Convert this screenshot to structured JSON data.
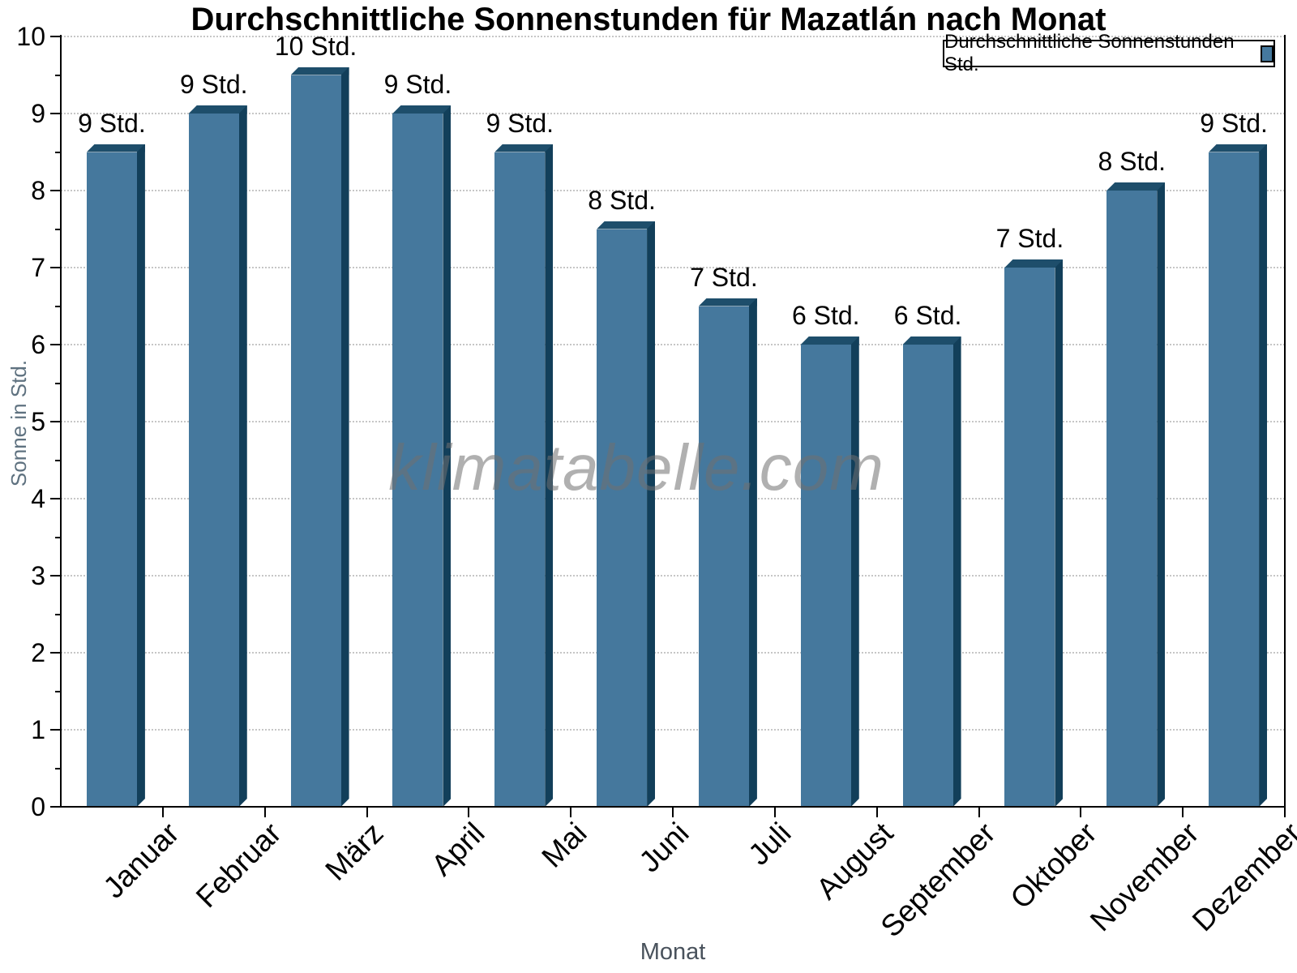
{
  "chart_data": {
    "type": "bar",
    "title": "Durchschnittliche Sonnenstunden für Mazatlán nach Monat",
    "xlabel": "Monat",
    "ylabel": "Sonne in Std.",
    "watermark": "klimatabelle.com",
    "categories": [
      "Januar",
      "Februar",
      "März",
      "April",
      "Mai",
      "Juni",
      "Juli",
      "August",
      "September",
      "Oktober",
      "November",
      "Dezember"
    ],
    "series": [
      {
        "name": "Durchschnittliche Sonnenstunden Std.",
        "values": [
          8.5,
          9,
          9.5,
          9,
          8.5,
          7.5,
          6.5,
          6,
          6,
          7,
          8,
          8.5
        ],
        "bar_labels": [
          "9 Std.",
          "9 Std.",
          "10 Std.",
          "9 Std.",
          "9 Std.",
          "8 Std.",
          "7 Std.",
          "6 Std.",
          "6 Std.",
          "7 Std.",
          "8 Std.",
          "9 Std."
        ]
      }
    ],
    "ylim": [
      0,
      10
    ],
    "ytick_step": 1,
    "yminor_tick_step": 0.5,
    "ytick_labels": [
      "0",
      "1",
      "2",
      "3",
      "4",
      "5",
      "6",
      "7",
      "8",
      "9",
      "10"
    ],
    "grid": "horizontal-dotted",
    "legend_position": "top-right",
    "colors": {
      "bar_face": "#45789D",
      "bar_top": "#1E4E6B",
      "bar_side": "#123F5A",
      "gridline": "#C6C6C6",
      "axis": "#000000",
      "tick_label_text": "#000000",
      "ylabel_text": "#5F7280",
      "xlabel_text": "#49525C",
      "watermark_text": "#707070"
    }
  }
}
